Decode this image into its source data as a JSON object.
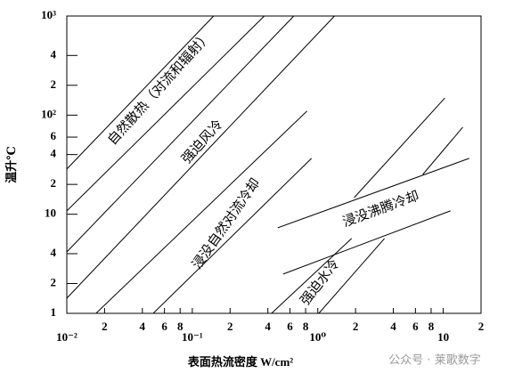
{
  "chart_data": {
    "type": "line",
    "xlabel": "表面热流密度 W/cm²",
    "ylabel": "温升℃",
    "xscale": "log",
    "yscale": "log",
    "xlim": [
      0.01,
      20
    ],
    "ylim": [
      1,
      1000
    ],
    "xticks": [
      {
        "value": 0.01,
        "label": "10⁻²"
      },
      {
        "value": 0.02,
        "label": "2"
      },
      {
        "value": 0.04,
        "label": "4"
      },
      {
        "value": 0.06,
        "label": "6"
      },
      {
        "value": 0.08,
        "label": "8"
      },
      {
        "value": 0.1,
        "label": "10⁻¹"
      },
      {
        "value": 0.2,
        "label": "2"
      },
      {
        "value": 0.4,
        "label": "4"
      },
      {
        "value": 0.6,
        "label": "6"
      },
      {
        "value": 0.8,
        "label": "8"
      },
      {
        "value": 1,
        "label": "10⁰"
      },
      {
        "value": 2,
        "label": "2"
      },
      {
        "value": 4,
        "label": "4"
      },
      {
        "value": 6,
        "label": "6"
      },
      {
        "value": 8,
        "label": "8"
      },
      10,
      {
        "value": 20,
        "label": "2"
      }
    ],
    "yticks": [
      1,
      2,
      4,
      10,
      {
        "value": 20,
        "label": "2"
      },
      {
        "value": 40,
        "label": "4"
      },
      {
        "value": 60,
        "label": "6"
      },
      {
        "value": 100,
        "label": "10²"
      },
      {
        "value": 200,
        "label": "2"
      },
      {
        "value": 400,
        "label": "4"
      },
      {
        "value": 1000,
        "label": "10³"
      }
    ],
    "color": "#000000",
    "series": [
      {
        "x": [
          0.01,
          0.148
        ],
        "values": [
          28.6,
          1000
        ]
      },
      {
        "x": [
          0.01,
          0.375
        ],
        "values": [
          10.8,
          1000
        ]
      },
      {
        "x": [
          0.01,
          0.644
        ],
        "values": [
          4.17,
          1000
        ]
      },
      {
        "x": [
          0.01,
          1.36
        ],
        "values": [
          1.42,
          1000
        ]
      },
      {
        "x": [
          0.0171,
          0.822
        ],
        "values": [
          1,
          110
        ]
      },
      {
        "x": [
          0.0488,
          0.891
        ],
        "values": [
          1,
          36.6
        ]
      },
      {
        "x": [
          0.48,
          16.1
        ],
        "values": [
          7.29,
          36.6
        ]
      },
      {
        "x": [
          0.529,
          11.4
        ],
        "values": [
          2.49,
          10.8
        ]
      },
      {
        "x": [
          1.95,
          10.3
        ],
        "values": [
          14.7,
          149
        ]
      },
      {
        "x": [
          6.87,
          14.3
        ],
        "values": [
          25.2,
          75.5
        ]
      },
      {
        "x": [
          0.428,
          1.86
        ],
        "values": [
          1,
          5.69
        ]
      },
      {
        "x": [
          1.02,
          3.4
        ],
        "values": [
          1,
          5.69
        ]
      }
    ],
    "annotations": [
      "自然散热（对流和辐射）",
      "强迫风冷",
      "浸没自然对流冷却",
      "浸没沸腾冷却",
      "强迫水冷"
    ],
    "watermark": "公众号 · 莱歌数字"
  }
}
